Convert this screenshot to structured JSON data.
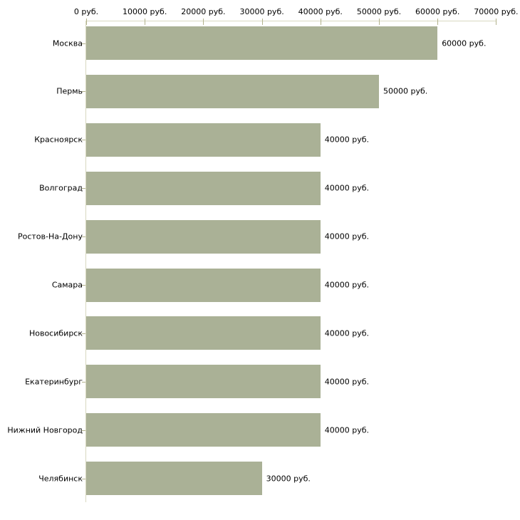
{
  "chart_data": {
    "type": "bar",
    "orientation": "horizontal",
    "title": "",
    "xlabel": "",
    "ylabel": "",
    "unit": "руб.",
    "grid": false,
    "legend": false,
    "xlim": [
      0,
      70000
    ],
    "x_ticks": [
      {
        "value": 0,
        "label": "0 руб."
      },
      {
        "value": 10000,
        "label": "10000 руб."
      },
      {
        "value": 20000,
        "label": "20000 руб."
      },
      {
        "value": 30000,
        "label": "30000 руб."
      },
      {
        "value": 40000,
        "label": "40000 руб."
      },
      {
        "value": 50000,
        "label": "50000 руб."
      },
      {
        "value": 60000,
        "label": "60000 руб."
      },
      {
        "value": 70000,
        "label": "70000 руб."
      }
    ],
    "categories": [
      "Москва",
      "Пермь",
      "Красноярск",
      "Волгоград",
      "Ростов-На-Дону",
      "Самара",
      "Новосибирск",
      "Екатеринбург",
      "Нижний Новгород",
      "Челябинск"
    ],
    "values": [
      60000,
      50000,
      40000,
      40000,
      40000,
      40000,
      40000,
      40000,
      40000,
      30000
    ],
    "value_labels": [
      "60000 руб.",
      "50000 руб.",
      "40000 руб.",
      "40000 руб.",
      "40000 руб.",
      "40000 руб.",
      "40000 руб.",
      "40000 руб.",
      "40000 руб.",
      "30000 руб."
    ],
    "colors": {
      "bar": "#aab196",
      "axis_line": "#d8d8c0",
      "tick": "#b2b28c",
      "text": "#000000",
      "background": "#ffffff"
    }
  }
}
